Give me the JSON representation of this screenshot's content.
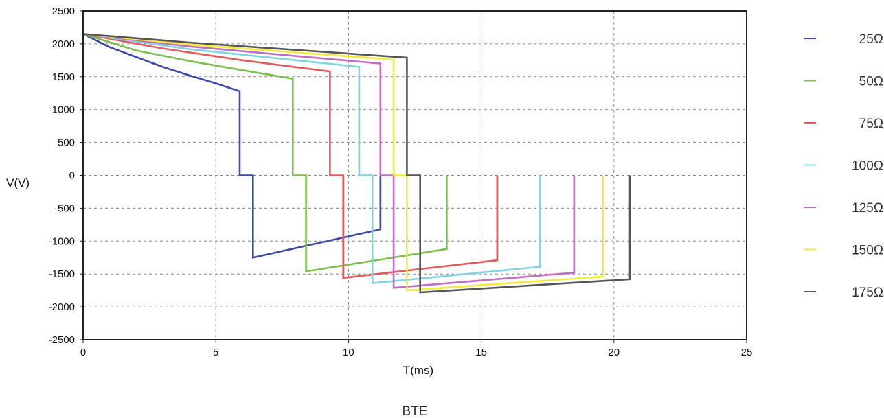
{
  "chart_data": {
    "type": "line",
    "xlabel": "T(ms)",
    "ylabel": "V(V)",
    "caption": "BTE",
    "xlim": [
      0,
      25
    ],
    "ylim": [
      -2500,
      2500
    ],
    "xticks": [
      "0",
      "5",
      "10",
      "15",
      "20",
      "25"
    ],
    "yticks": [
      "2500",
      "2000",
      "1500",
      "1000",
      "500",
      "0",
      "-500",
      "-1000",
      "-1500",
      "-2000",
      "-2500"
    ],
    "grid": true,
    "legend_position": "right",
    "series": [
      {
        "name": "25Ω",
        "color": "#3d4aa5",
        "points": [
          [
            0,
            2150
          ],
          [
            1,
            1950
          ],
          [
            2,
            1800
          ],
          [
            3,
            1650
          ],
          [
            4,
            1520
          ],
          [
            5,
            1400
          ],
          [
            5.9,
            1280
          ],
          [
            5.9,
            0
          ],
          [
            6.4,
            0
          ],
          [
            6.4,
            -1250
          ],
          [
            11.2,
            -820
          ],
          [
            11.2,
            0
          ]
        ]
      },
      {
        "name": "50Ω",
        "color": "#7dbf4f",
        "points": [
          [
            0,
            2150
          ],
          [
            2,
            1900
          ],
          [
            4,
            1740
          ],
          [
            6,
            1600
          ],
          [
            7.9,
            1470
          ],
          [
            7.9,
            0
          ],
          [
            8.4,
            0
          ],
          [
            8.4,
            -1460
          ],
          [
            13.7,
            -1120
          ],
          [
            13.7,
            0
          ]
        ]
      },
      {
        "name": "75Ω",
        "color": "#e25a5a",
        "points": [
          [
            0,
            2150
          ],
          [
            3,
            1930
          ],
          [
            6,
            1750
          ],
          [
            9.3,
            1580
          ],
          [
            9.3,
            0
          ],
          [
            9.8,
            0
          ],
          [
            9.8,
            -1560
          ],
          [
            15.6,
            -1290
          ],
          [
            15.6,
            0
          ]
        ]
      },
      {
        "name": "100Ω",
        "color": "#7fd4e0",
        "points": [
          [
            0,
            2150
          ],
          [
            4,
            1920
          ],
          [
            10.4,
            1650
          ],
          [
            10.4,
            0
          ],
          [
            10.9,
            0
          ],
          [
            10.9,
            -1640
          ],
          [
            17.2,
            -1390
          ],
          [
            17.2,
            0
          ]
        ]
      },
      {
        "name": "125Ω",
        "color": "#c06ec0",
        "points": [
          [
            0,
            2150
          ],
          [
            4,
            1960
          ],
          [
            11.2,
            1700
          ],
          [
            11.2,
            0
          ],
          [
            11.7,
            0
          ],
          [
            11.7,
            -1710
          ],
          [
            18.5,
            -1480
          ],
          [
            18.5,
            0
          ]
        ]
      },
      {
        "name": "150Ω",
        "color": "#f2ea3c",
        "points": [
          [
            0,
            2150
          ],
          [
            4,
            1990
          ],
          [
            11.7,
            1760
          ],
          [
            11.7,
            0
          ],
          [
            12.2,
            0
          ],
          [
            12.2,
            -1750
          ],
          [
            19.6,
            -1540
          ],
          [
            19.6,
            0
          ]
        ]
      },
      {
        "name": "175Ω",
        "color": "#555555",
        "points": [
          [
            0,
            2150
          ],
          [
            4,
            2020
          ],
          [
            12.2,
            1790
          ],
          [
            12.2,
            0
          ],
          [
            12.7,
            0
          ],
          [
            12.7,
            -1780
          ],
          [
            20.6,
            -1580
          ],
          [
            20.6,
            0
          ]
        ]
      }
    ]
  }
}
